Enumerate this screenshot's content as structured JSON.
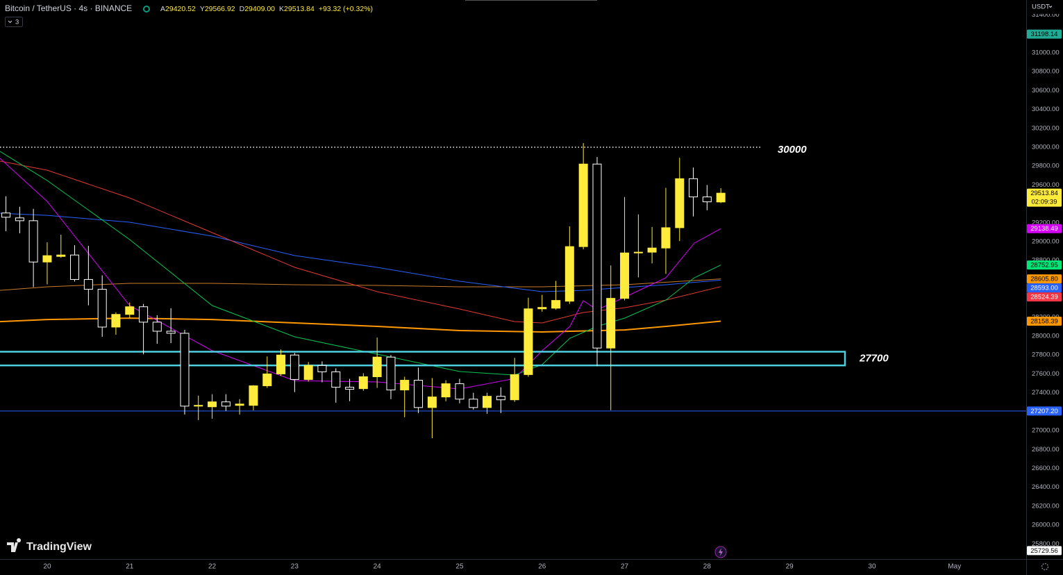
{
  "header": {
    "title": "Bitcoin / TetherUS · 4s · BINANCE",
    "ohlc": [
      {
        "key": "A",
        "value": "29420.52"
      },
      {
        "key": "Y",
        "value": "29566.92"
      },
      {
        "key": "D",
        "value": "29409.00"
      },
      {
        "key": "K",
        "value": "29513.84"
      }
    ],
    "change": "+93.32 (+0.32%)",
    "collapse_count": "3",
    "currency": "USDT",
    "brand": "TradingView"
  },
  "chart_data": {
    "type": "candlestick",
    "x": [
      19.5,
      19.667,
      19.833,
      20,
      20.167,
      20.333,
      20.5,
      20.667,
      20.833,
      21,
      21.167,
      21.333,
      21.5,
      21.667,
      21.833,
      22,
      22.167,
      22.333,
      22.5,
      22.667,
      22.833,
      23,
      23.167,
      23.333,
      23.5,
      23.667,
      23.833,
      24,
      24.167,
      24.333,
      24.5,
      24.667,
      24.833,
      25,
      25.167,
      25.333,
      25.5,
      25.667,
      25.833,
      26,
      26.167,
      26.333,
      26.5,
      26.667,
      26.833,
      27,
      27.167,
      27.333,
      27.5,
      27.667,
      27.833,
      28,
      28.167
    ],
    "open": [
      29304,
      29252,
      29222,
      28785,
      28844,
      28859,
      28600,
      28496,
      28096,
      28230,
      28311,
      28148,
      28052,
      28030,
      27259,
      27252,
      27304,
      27267,
      27267,
      27474,
      27600,
      27800,
      27541,
      27689,
      27622,
      27459,
      27444,
      27570,
      27778,
      27430,
      27533,
      27244,
      27356,
      27496,
      27333,
      27244,
      27363,
      27326,
      27593,
      28289,
      28296,
      28370,
      28948,
      29822,
      27874,
      28400,
      28881,
      28889,
      28933,
      29148,
      29667,
      29474,
      29420.52
    ],
    "high": [
      29481,
      29370,
      29348,
      28993,
      29074,
      28963,
      28956,
      28644,
      28252,
      28356,
      28341,
      28222,
      28296,
      28067,
      27370,
      27385,
      27385,
      27333,
      27481,
      27785,
      27859,
      27822,
      27726,
      27733,
      27659,
      27548,
      27607,
      27985,
      27800,
      27570,
      27667,
      27556,
      27533,
      27548,
      27400,
      27400,
      27459,
      27770,
      28407,
      28437,
      28585,
      29163,
      30044,
      29896,
      28748,
      29474,
      29289,
      29156,
      29570,
      29889,
      29785,
      29600,
      29566.92
    ],
    "low": [
      29111,
      29089,
      28519,
      28548,
      28830,
      28578,
      28326,
      27993,
      28015,
      28193,
      27807,
      27919,
      27926,
      27170,
      27111,
      27126,
      27207,
      27170,
      27215,
      27452,
      27578,
      27407,
      27519,
      27511,
      27296,
      27311,
      27422,
      27452,
      27333,
      27141,
      27185,
      26919,
      27311,
      27289,
      27222,
      27178,
      27185,
      27304,
      27570,
      28259,
      28281,
      28341,
      28919,
      27681,
      27215,
      28378,
      28622,
      28770,
      28659,
      29007,
      29267,
      29333,
      29409
    ],
    "close": [
      29259,
      29222,
      28785,
      28852,
      28859,
      28600,
      28496,
      28096,
      28230,
      28311,
      28148,
      28052,
      28030,
      27259,
      27267,
      27304,
      27259,
      27281,
      27474,
      27600,
      27800,
      27541,
      27689,
      27622,
      27459,
      27437,
      27570,
      27778,
      27430,
      27533,
      27244,
      27356,
      27496,
      27333,
      27244,
      27363,
      27326,
      27593,
      28289,
      28304,
      28378,
      28948,
      29822,
      27874,
      28400,
      28881,
      28889,
      28933,
      29148,
      29667,
      29474,
      29422,
      29513.84
    ],
    "up_color": "#ffeb3b",
    "down_color": "#ffffff",
    "series": [
      {
        "color": "#ff9800",
        "width": 2,
        "x": [
          19.428,
          20,
          21,
          22,
          23,
          24,
          25,
          26,
          27,
          27.5,
          28.167
        ],
        "values": [
          28154,
          28176,
          28191,
          28176,
          28140,
          28103,
          28059,
          28044,
          28066,
          28103,
          28158.39
        ]
      },
      {
        "color": "#c77c2a",
        "width": 1,
        "x": [
          19.428,
          20,
          21,
          22,
          23,
          24,
          25,
          26,
          27,
          28.167
        ],
        "values": [
          28485,
          28522,
          28559,
          28559,
          28544,
          28537,
          28522,
          28522,
          28544,
          28605.8
        ]
      },
      {
        "color": "#2962ff",
        "width": 1,
        "x": [
          19.428,
          20,
          21,
          22,
          23,
          24,
          25,
          26,
          26.498,
          27,
          27.5,
          28.167
        ],
        "values": [
          29301,
          29279,
          29206,
          29059,
          28853,
          28728,
          28581,
          28471,
          28485,
          28515,
          28544,
          28593
        ]
      },
      {
        "color": "#e53935",
        "width": 1,
        "x": [
          19.428,
          20,
          21,
          22,
          23,
          24,
          25,
          25.665,
          26,
          26.498,
          27,
          27.5,
          28.167
        ],
        "values": [
          29853,
          29757,
          29463,
          29096,
          28728,
          28471,
          28287,
          28154,
          28140,
          28250,
          28301,
          28382,
          28524.39
        ]
      },
      {
        "color": "#00c853",
        "width": 1,
        "x": [
          19.428,
          20,
          21,
          22,
          23,
          24,
          25,
          25.665,
          26,
          26.337,
          26.667,
          27,
          27.5,
          27.845,
          28.167
        ],
        "values": [
          29956,
          29647,
          29022,
          28324,
          27993,
          27809,
          27625,
          27588,
          27699,
          27978,
          28103,
          28191,
          28382,
          28618,
          28752.95
        ]
      },
      {
        "color": "#d500f9",
        "width": 1,
        "x": [
          19.428,
          20,
          21,
          22,
          23,
          24,
          25,
          25.665,
          26,
          26.337,
          26.498,
          26.667,
          27,
          27.5,
          27.845,
          28.167
        ],
        "values": [
          29882,
          29426,
          28324,
          27846,
          27529,
          27515,
          27441,
          27551,
          27846,
          28103,
          28375,
          28279,
          28412,
          28618,
          28985,
          29138.49
        ]
      }
    ],
    "levels": [
      {
        "value": 30000,
        "label": "30000",
        "color": "#ffffff",
        "style": "dotted"
      },
      {
        "value": 27207.2,
        "color": "#2962ff",
        "style": "solid"
      }
    ],
    "zone": {
      "top": 27835,
      "bottom": 27690,
      "label": "27700",
      "color": "#4dd0e1"
    },
    "xlim": [
      19.428,
      31.869
    ],
    "xticks": [
      20,
      21,
      22,
      23,
      24,
      25,
      26,
      27,
      28,
      29,
      30,
      {
        "value": 31,
        "label": "May"
      }
    ],
    "ylim": [
      25640,
      31559
    ],
    "yticks": [
      {
        "value": 25800,
        "label": "25800.00"
      },
      {
        "value": 26000,
        "label": "26000.00"
      },
      {
        "value": 26200,
        "label": "26200.00"
      },
      {
        "value": 26400,
        "label": "26400.00"
      },
      {
        "value": 26600,
        "label": "26600.00"
      },
      {
        "value": 26800,
        "label": "26800.00"
      },
      {
        "value": 27000,
        "label": "27000.00"
      },
      {
        "value": 27200,
        "label": "27200.00"
      },
      {
        "value": 27400,
        "label": "27400.00"
      },
      {
        "value": 27600,
        "label": "27600.00"
      },
      {
        "value": 27800,
        "label": "27800.00"
      },
      {
        "value": 28000,
        "label": "28000.00"
      },
      {
        "value": 28200,
        "label": "28200.00"
      },
      {
        "value": 28400,
        "label": "28400.00"
      },
      {
        "value": 28600,
        "label": "28600.00"
      },
      {
        "value": 28800,
        "label": "28800.00"
      },
      {
        "value": 29000,
        "label": "29000.00"
      },
      {
        "value": 29200,
        "label": "29200.00"
      },
      {
        "value": 29400,
        "label": "29400.00"
      },
      {
        "value": 29600,
        "label": "29600.00"
      },
      {
        "value": 29800,
        "label": "29800.00"
      },
      {
        "value": 30000,
        "label": "30000.00"
      },
      {
        "value": 30200,
        "label": "30200.00"
      },
      {
        "value": 30400,
        "label": "30400.00"
      },
      {
        "value": 30600,
        "label": "30600.00"
      },
      {
        "value": 30800,
        "label": "30800.00"
      },
      {
        "value": 31000,
        "label": "31000.00"
      },
      {
        "value": 31200,
        "label": "31200.00"
      },
      {
        "value": 31400,
        "label": "31400.00"
      }
    ],
    "price_labels": [
      {
        "value": 31198.14,
        "label": "31198.14",
        "color": "#22ab94",
        "text_color": "#000000"
      },
      {
        "value": 29513.84,
        "label": "29513.84",
        "sublabel": "02:09:39",
        "color": "#ffeb3b",
        "text_color": "#000000"
      },
      {
        "value": 29138.49,
        "label": "29138.49",
        "color": "#d500f9",
        "text_color": "#ffffff"
      },
      {
        "value": 28752.95,
        "label": "28752.95",
        "color": "#00e676",
        "text_color": "#000000"
      },
      {
        "value": 28605.8,
        "label": "28605.80",
        "color": "#ff9800",
        "text_color": "#000000"
      },
      {
        "value": 28593,
        "label": "28593.00",
        "color": "#2962ff",
        "text_color": "#ffffff"
      },
      {
        "value": 28524.39,
        "label": "28524.39",
        "color": "#f23645",
        "text_color": "#ffffff"
      },
      {
        "value": 28158.39,
        "label": "28158.39",
        "color": "#ff9800",
        "text_color": "#000000"
      },
      {
        "value": 27207.2,
        "label": "27207.20",
        "color": "#2962ff",
        "text_color": "#ffffff"
      },
      {
        "value": 25729.56,
        "label": "25729.56",
        "color": "#ffffff",
        "text_color": "#000000"
      }
    ]
  }
}
